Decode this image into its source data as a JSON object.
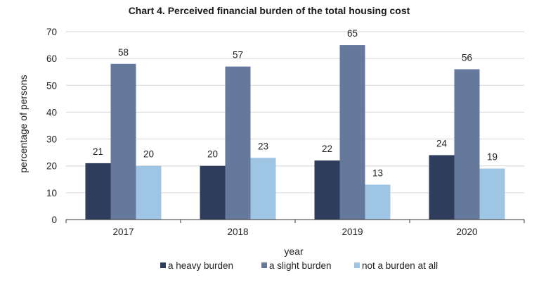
{
  "chart_data": {
    "type": "bar",
    "title": "Chart 4. Perceived financial burden of the total housing cost",
    "xlabel": "year",
    "ylabel": "percentage of persons",
    "categories": [
      "2017",
      "2018",
      "2019",
      "2020"
    ],
    "ylim": [
      0,
      70
    ],
    "yticks": [
      0,
      10,
      20,
      30,
      40,
      50,
      60,
      70
    ],
    "grid": true,
    "legend_position": "bottom",
    "series": [
      {
        "name": "a heavy burden",
        "color": "#2e3d5c",
        "values": [
          21,
          20,
          22,
          24
        ]
      },
      {
        "name": "a slight burden",
        "color": "#64799b",
        "values": [
          58,
          57,
          65,
          56
        ]
      },
      {
        "name": "not a burden at all",
        "color": "#9fc5e5",
        "values": [
          20,
          23,
          13,
          19
        ]
      }
    ]
  }
}
